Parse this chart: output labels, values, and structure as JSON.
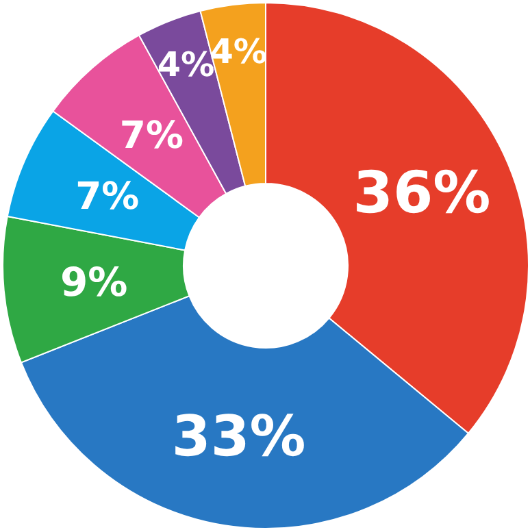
{
  "chart_data": {
    "type": "donut",
    "categories": [
      null,
      null,
      null,
      null,
      null,
      null,
      null
    ],
    "values": [
      36,
      33,
      9,
      7,
      7,
      4,
      4
    ],
    "colors": [
      "#e63d2a",
      "#2878c3",
      "#2fa844",
      "#0aa4e6",
      "#e8529b",
      "#7a4a9c",
      "#f4a11e"
    ],
    "value_labels": [
      "36%",
      "33%",
      "9%",
      "7%",
      "7%",
      "4%",
      "4%"
    ]
  }
}
